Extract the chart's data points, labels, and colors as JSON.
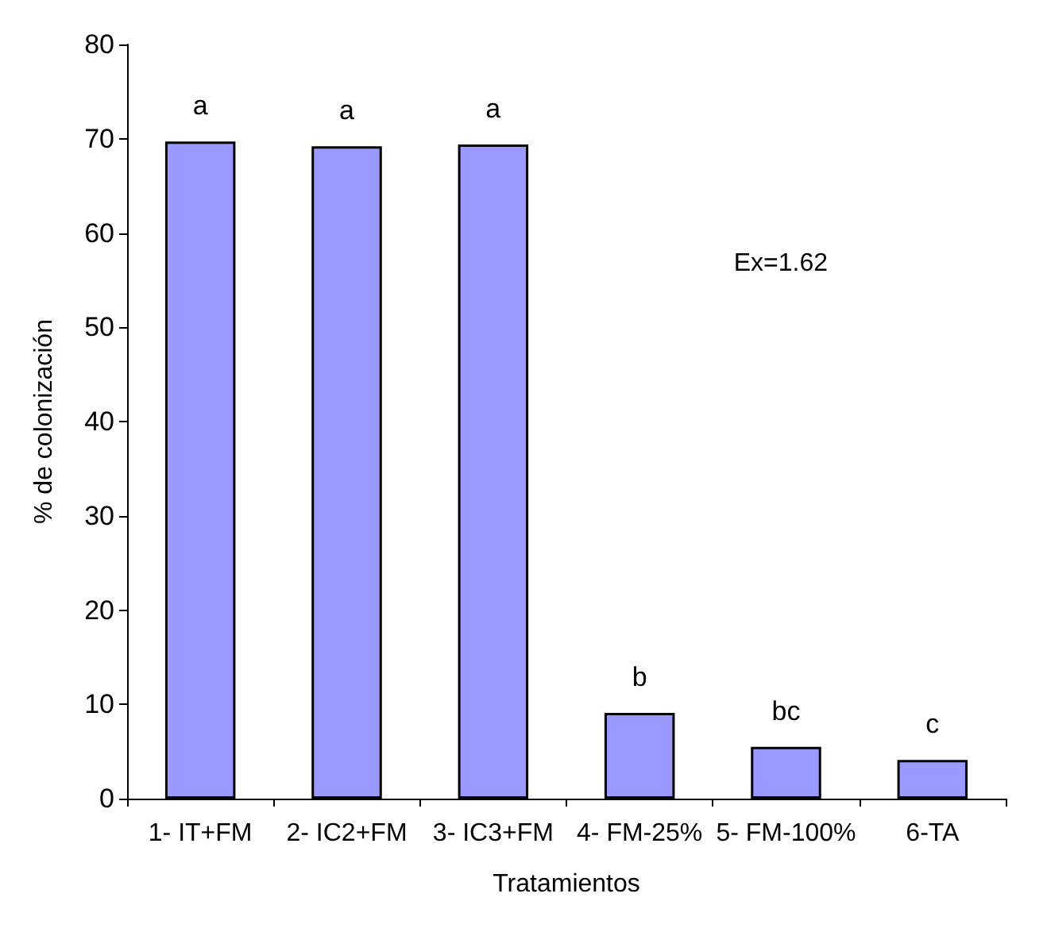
{
  "chart_data": {
    "type": "bar",
    "xlabel": "Tratamientos",
    "ylabel": "% de colonización",
    "categories": [
      "1- IT+FM",
      "2- IC2+FM",
      "3- IC3+FM",
      "4- FM-25%",
      "5- FM-100%",
      "6-TA"
    ],
    "values": [
      69.7,
      69.2,
      69.4,
      9.1,
      5.5,
      4.1
    ],
    "color": "#9999ff",
    "ylim": [
      0,
      80
    ],
    "yticks": [
      0,
      10,
      20,
      30,
      40,
      50,
      60,
      70,
      80
    ],
    "grid": false,
    "annotations": [
      {
        "text": "a",
        "x": "1- IT+FM",
        "y": 69.7
      },
      {
        "text": "a",
        "x": "2- IC2+FM",
        "y": 69.2
      },
      {
        "text": "a",
        "x": "3- IC3+FM",
        "y": 69.4
      },
      {
        "text": "b",
        "x": "4- FM-25%",
        "y": 9.1
      },
      {
        "text": "bc",
        "x": "5- FM-100%",
        "y": 5.5
      },
      {
        "text": "c",
        "x": "6-TA",
        "y": 4.1
      },
      "Ex=1.62"
    ]
  }
}
